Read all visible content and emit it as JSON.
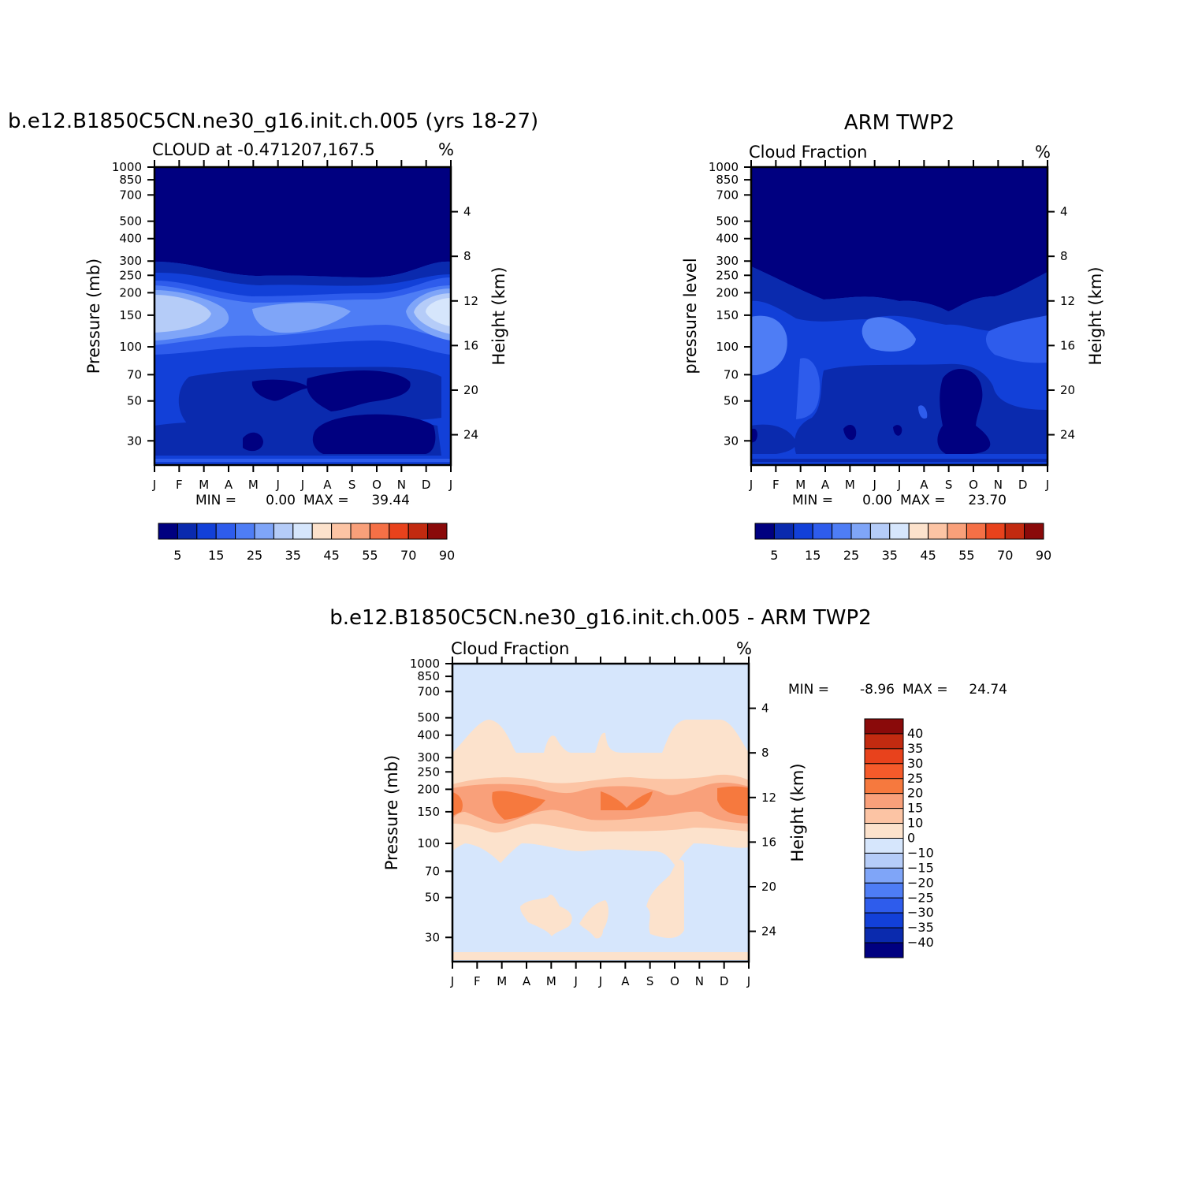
{
  "months": [
    "J",
    "F",
    "M",
    "A",
    "M",
    "J",
    "J",
    "A",
    "S",
    "O",
    "N",
    "D",
    "J"
  ],
  "chart_data": [
    {
      "type": "heatmap",
      "title": "b.e12.B1850C5CN.ne30_g16.init.ch.005 (yrs 18-27)",
      "subtitle": "CLOUD at -0.471207,167.5",
      "units": "%",
      "ylabel": "Pressure (mb)",
      "ylabel_right": "Height (km)",
      "pressure_ticks": [
        "30",
        "50",
        "70",
        "100",
        "150",
        "200",
        "250",
        "300",
        "400",
        "500",
        "700",
        "850",
        "1000"
      ],
      "height_ticks": [
        "24",
        "20",
        "16",
        "12",
        "8",
        "4"
      ],
      "stats": {
        "min_label": "MIN =",
        "min": "0.00",
        "max_label": "MAX =",
        "max": "39.44"
      },
      "colorbar_labels": [
        "5",
        "15",
        "25",
        "35",
        "45",
        "55",
        "70",
        "90"
      ]
    },
    {
      "type": "heatmap",
      "title": "ARM TWP2",
      "subtitle": "Cloud Fraction",
      "units": "%",
      "ylabel": "pressure level",
      "ylabel_right": "Height (km)",
      "pressure_ticks": [
        "30",
        "50",
        "70",
        "100",
        "150",
        "200",
        "250",
        "300",
        "400",
        "500",
        "700",
        "850",
        "1000"
      ],
      "height_ticks": [
        "24",
        "20",
        "16",
        "12",
        "8",
        "4"
      ],
      "stats": {
        "min_label": "MIN =",
        "min": "0.00",
        "max_label": "MAX =",
        "max": "23.70"
      },
      "colorbar_labels": [
        "5",
        "15",
        "25",
        "35",
        "45",
        "55",
        "70",
        "90"
      ]
    },
    {
      "type": "heatmap",
      "title": "b.e12.B1850C5CN.ne30_g16.init.ch.005 - ARM TWP2",
      "subtitle": "Cloud Fraction",
      "units": "%",
      "ylabel": "Pressure (mb)",
      "ylabel_right": "Height (km)",
      "pressure_ticks": [
        "30",
        "50",
        "70",
        "100",
        "150",
        "200",
        "250",
        "300",
        "400",
        "500",
        "700",
        "850",
        "1000"
      ],
      "height_ticks": [
        "24",
        "20",
        "16",
        "12",
        "8",
        "4"
      ],
      "stats": {
        "min_label": "MIN =",
        "min": "-8.96",
        "max_label": "MAX =",
        "max": "24.74"
      },
      "colorbar_labels": [
        "40",
        "35",
        "30",
        "25",
        "20",
        "15",
        "10",
        "0",
        "−10",
        "−15",
        "−20",
        "−25",
        "−30",
        "−35",
        "−40"
      ]
    }
  ],
  "colors": {
    "abs_scale": [
      "#000080",
      "#0A2AAE",
      "#1240D8",
      "#2E5CEC",
      "#4E7DF5",
      "#7FA5F8",
      "#B5CCF8",
      "#D6E6FC",
      "#FCE2CC",
      "#FCC4A4",
      "#F9A07A",
      "#F57046",
      "#E8421C",
      "#C22A10",
      "#8A0A0A"
    ],
    "diff_scale": [
      "#8A0A0A",
      "#C22A10",
      "#E8421C",
      "#F55A2A",
      "#F6793E",
      "#F9A07A",
      "#FCC4A4",
      "#FCE2CC",
      "#D6E6FC",
      "#B5CCF8",
      "#7FA5F8",
      "#4E7DF5",
      "#2E5CEC",
      "#1240D8",
      "#0A2AAE",
      "#000080"
    ]
  }
}
